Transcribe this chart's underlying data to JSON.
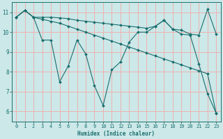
{
  "xlabel": "Humidex (Indice chaleur)",
  "background_color": "#cce8e8",
  "grid_color": "#f0b0b0",
  "line_color": "#1a6e6e",
  "xlim": [
    -0.5,
    23.5
  ],
  "ylim": [
    5.5,
    11.5
  ],
  "yticks": [
    6,
    7,
    8,
    9,
    10,
    11
  ],
  "xticks": [
    0,
    1,
    2,
    3,
    4,
    5,
    6,
    7,
    8,
    9,
    10,
    11,
    12,
    13,
    14,
    15,
    16,
    17,
    18,
    19,
    20,
    21,
    22,
    23
  ],
  "lineA_x": [
    0,
    1,
    2,
    3,
    4,
    5,
    6,
    7,
    8,
    9,
    10,
    11,
    12,
    13,
    14,
    15,
    16,
    17,
    18,
    19,
    20,
    21,
    22,
    23
  ],
  "lineA_y": [
    10.75,
    11.1,
    10.75,
    9.6,
    9.6,
    7.5,
    8.3,
    9.6,
    8.9,
    7.3,
    6.3,
    8.1,
    8.5,
    9.5,
    10.0,
    10.0,
    10.3,
    10.6,
    10.15,
    9.9,
    9.85,
    8.4,
    6.9,
    5.9
  ],
  "lineB_x": [
    0,
    1,
    2,
    3,
    4,
    5,
    6,
    7,
    8,
    9,
    10,
    11,
    12,
    13,
    14,
    15,
    16,
    17,
    18,
    19,
    20,
    21,
    22,
    23
  ],
  "lineB_y": [
    10.75,
    11.1,
    10.75,
    10.65,
    10.55,
    10.45,
    10.3,
    10.15,
    10.0,
    9.85,
    9.7,
    9.55,
    9.4,
    9.25,
    9.1,
    8.95,
    8.8,
    8.65,
    8.5,
    8.35,
    8.2,
    8.05,
    7.9,
    5.9
  ],
  "lineC_x": [
    0,
    1,
    2,
    3,
    4,
    5,
    6,
    7,
    8,
    9,
    10,
    11,
    12,
    13,
    14,
    15,
    16,
    17,
    18,
    19,
    20,
    21,
    22,
    23
  ],
  "lineC_y": [
    10.75,
    11.1,
    10.75,
    10.75,
    10.75,
    10.72,
    10.68,
    10.6,
    10.55,
    10.5,
    10.45,
    10.4,
    10.35,
    10.3,
    10.25,
    10.2,
    10.3,
    10.6,
    10.15,
    10.1,
    9.9,
    9.85,
    11.15,
    9.9
  ]
}
